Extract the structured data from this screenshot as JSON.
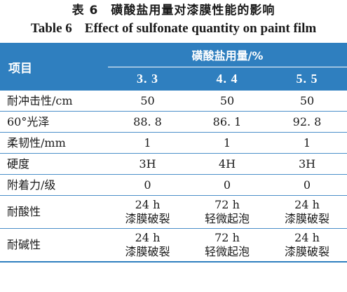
{
  "caption": {
    "zh": "表 6　磺酸盐用量对漆膜性能的影响",
    "en_label": "Table 6",
    "en_title": "Effect of sulfonate quantity on paint film"
  },
  "header": {
    "item": "项目",
    "group": "磺酸盐用量/%",
    "columns": [
      "3. 3",
      "4. 4",
      "5. 5"
    ]
  },
  "rows": [
    {
      "name": "耐冲击性/cm",
      "values": [
        "50",
        "50",
        "50"
      ]
    },
    {
      "name": "60°光泽",
      "values": [
        "88. 8",
        "86. 1",
        "92. 8"
      ]
    },
    {
      "name": "柔韧性/mm",
      "values": [
        "1",
        "1",
        "1"
      ]
    },
    {
      "name": "硬度",
      "values": [
        "3H",
        "4H",
        "3H"
      ]
    },
    {
      "name": "附着力/级",
      "values": [
        "0",
        "0",
        "0"
      ]
    },
    {
      "name": "耐酸性",
      "values": [
        [
          "24 h",
          "漆膜破裂"
        ],
        [
          "72 h",
          "轻微起泡"
        ],
        [
          "24 h",
          "漆膜破裂"
        ]
      ]
    },
    {
      "name": "耐碱性",
      "values": [
        [
          "24 h",
          "漆膜破裂"
        ],
        [
          "72 h",
          "轻微起泡"
        ],
        [
          "24 h",
          "漆膜破裂"
        ]
      ]
    }
  ]
}
